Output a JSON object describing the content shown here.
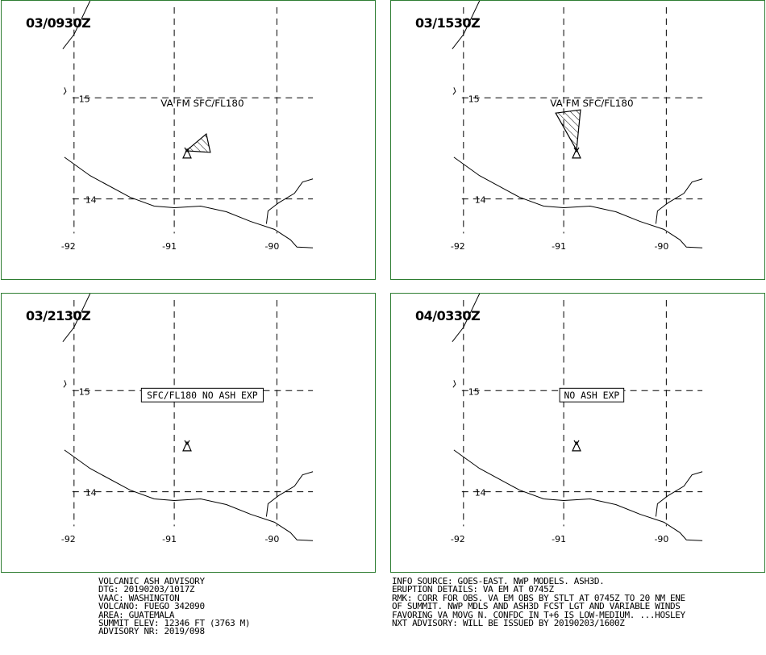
{
  "panels": [
    {
      "time": "03/0930Z",
      "label": "VA FM SFC/FL180",
      "boxed": false,
      "plume": "east"
    },
    {
      "time": "03/1530Z",
      "label": "VA FM SFC/FL180",
      "boxed": false,
      "plume": "north"
    },
    {
      "time": "03/2130Z",
      "label": "SFC/FL180 NO ASH EXP",
      "boxed": true,
      "plume": "none"
    },
    {
      "time": "04/0330Z",
      "label": "NO ASH EXP",
      "boxed": true,
      "plume": "none"
    }
  ],
  "grid": {
    "lat_labels": [
      "15",
      "14"
    ],
    "lon_labels": [
      "-92",
      "-91",
      "-90"
    ]
  },
  "advisory_left": [
    "VOLCANIC ASH ADVISORY",
    "DTG: 20190203/1017Z",
    "VAAC: WASHINGTON",
    "VOLCANO: FUEGO 342090",
    "AREA: GUATEMALA",
    "SUMMIT ELEV: 12346 FT (3763 M)",
    "ADVISORY NR: 2019/098"
  ],
  "advisory_right": [
    "INFO SOURCE: GOES-EAST. NWP MODELS. ASH3D.",
    "ERUPTION DETAILS: VA EM AT 0745Z",
    "RMK: CORR FOR OBS. VA EM OBS BY STLT AT 0745Z TO 20 NM ENE",
    "OF SUMMIT. NWP MDLS AND ASH3D FCST LGT AND VARIABLE WINDS",
    "FAVORING VA MOVG N. CONFDC IN T+6 IS LOW-MEDIUM. ...HOSLEY",
    "NXT ADVISORY: WILL BE ISSUED BY 20190203/1600Z"
  ],
  "colors": {
    "panel_border": "#2e7d32",
    "lines": "#000000"
  }
}
